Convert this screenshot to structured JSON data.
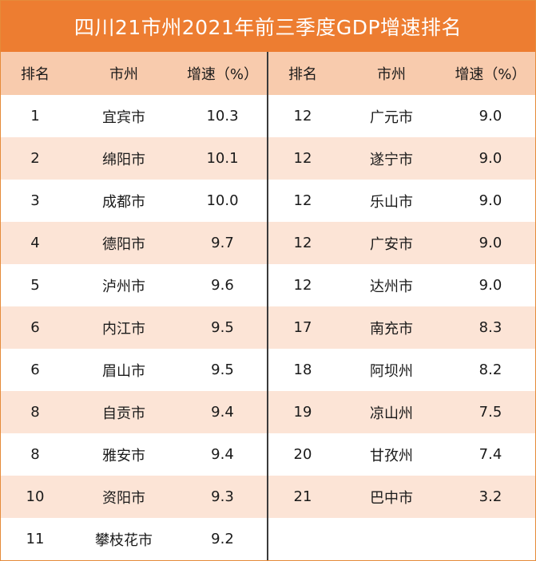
{
  "title": "四川21市州2021年前三季度GDP增速排名",
  "headers": {
    "rank": "排名",
    "city": "市州",
    "growth": "增速（%）"
  },
  "left_rows": [
    {
      "rank": "1",
      "city": "宜宾市",
      "growth": "10.3"
    },
    {
      "rank": "2",
      "city": "绵阳市",
      "growth": "10.1"
    },
    {
      "rank": "3",
      "city": "成都市",
      "growth": "10.0"
    },
    {
      "rank": "4",
      "city": "德阳市",
      "growth": "9.7"
    },
    {
      "rank": "5",
      "city": "泸州市",
      "growth": "9.6"
    },
    {
      "rank": "6",
      "city": "内江市",
      "growth": "9.5"
    },
    {
      "rank": "6",
      "city": "眉山市",
      "growth": "9.5"
    },
    {
      "rank": "8",
      "city": "自贡市",
      "growth": "9.4"
    },
    {
      "rank": "8",
      "city": "雅安市",
      "growth": "9.4"
    },
    {
      "rank": "10",
      "city": "资阳市",
      "growth": "9.3"
    },
    {
      "rank": "11",
      "city": "攀枝花市",
      "growth": "9.2"
    }
  ],
  "right_rows": [
    {
      "rank": "12",
      "city": "广元市",
      "growth": "9.0"
    },
    {
      "rank": "12",
      "city": "遂宁市",
      "growth": "9.0"
    },
    {
      "rank": "12",
      "city": "乐山市",
      "growth": "9.0"
    },
    {
      "rank": "12",
      "city": "广安市",
      "growth": "9.0"
    },
    {
      "rank": "12",
      "city": "达州市",
      "growth": "9.0"
    },
    {
      "rank": "17",
      "city": "南充市",
      "growth": "8.3"
    },
    {
      "rank": "18",
      "city": "阿坝州",
      "growth": "8.2"
    },
    {
      "rank": "19",
      "city": "凉山州",
      "growth": "7.5"
    },
    {
      "rank": "20",
      "city": "甘孜州",
      "growth": "7.4"
    },
    {
      "rank": "21",
      "city": "巴中市",
      "growth": "3.2"
    }
  ],
  "colors": {
    "title_bg": "#ed7d31",
    "header_bg": "#f8cbad",
    "alt_row_bg": "#fce4d6",
    "divider": "#3a3a3a"
  }
}
